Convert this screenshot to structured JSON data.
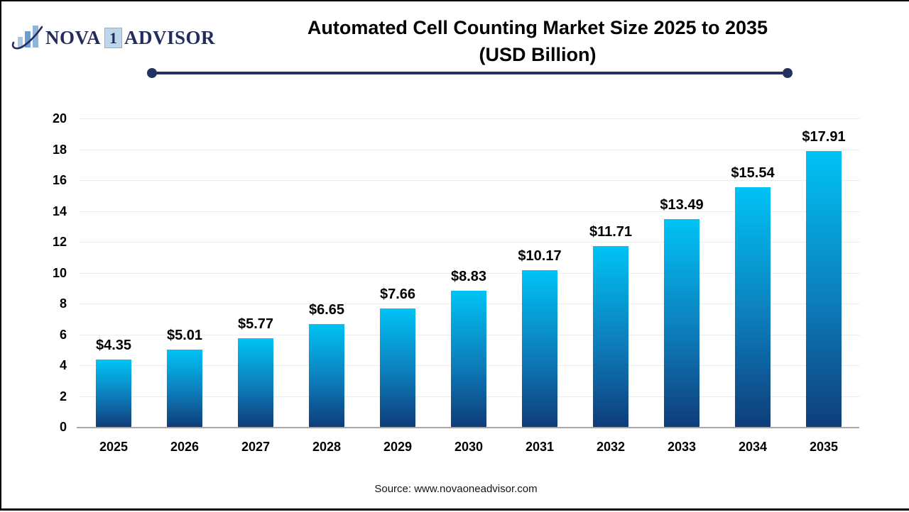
{
  "logo": {
    "icon": "bar-chart-swoosh-icon",
    "word1": "NOVA",
    "one": "1",
    "word2": "ADVISOR",
    "navy": "#232c5f",
    "bar_colors": [
      "#a9c6e2",
      "#6f9dd0",
      "#8fb4da"
    ]
  },
  "title": {
    "line1": "Automated Cell Counting Market Size 2025 to 2035",
    "line2": "(USD Billion)"
  },
  "source": "Source: www.novaoneadvisor.com",
  "chart_data": {
    "type": "bar",
    "title": "Automated Cell Counting Market Size 2025 to 2035 (USD Billion)",
    "categories": [
      "2025",
      "2026",
      "2027",
      "2028",
      "2029",
      "2030",
      "2031",
      "2032",
      "2033",
      "2034",
      "2035"
    ],
    "values": [
      4.35,
      5.01,
      5.77,
      6.65,
      7.66,
      8.83,
      10.17,
      11.71,
      13.49,
      15.54,
      17.91
    ],
    "value_labels": [
      "$4.35",
      "$5.01",
      "$5.77",
      "$6.65",
      "$7.66",
      "$8.83",
      "$10.17",
      "$11.71",
      "$13.49",
      "$15.54",
      "$17.91"
    ],
    "xlabel": "",
    "ylabel": "",
    "ylim": [
      0,
      20
    ],
    "yticks": [
      0,
      2,
      4,
      6,
      8,
      10,
      12,
      14,
      16,
      18,
      20
    ],
    "grid": true,
    "legend": "none",
    "bar_gradient_top": "#00c3f5",
    "bar_gradient_mid": "#0d7cba",
    "bar_gradient_bottom": "#0e3d7a",
    "gridline_color": "#ececec",
    "axis_color": "#a8a8a8"
  }
}
